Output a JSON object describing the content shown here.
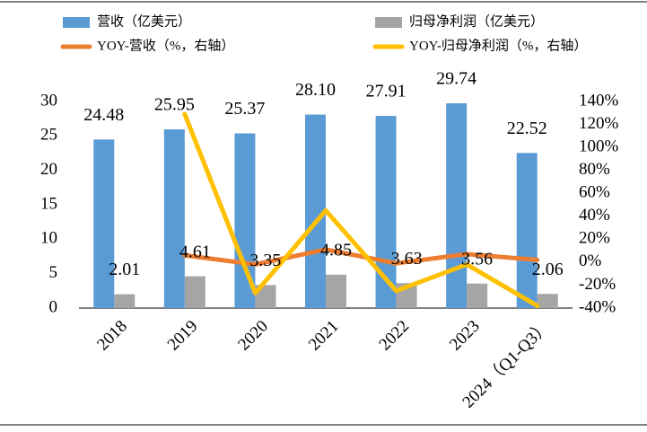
{
  "chart_data": {
    "type": "bar_line",
    "categories": [
      "2018",
      "2019",
      "2020",
      "2021",
      "2022",
      "2023",
      "2024（Q1-Q3）"
    ],
    "series": [
      {
        "name": "营收（亿美元）",
        "type": "bar",
        "color": "#5b9bd5",
        "values": [
          24.48,
          25.95,
          25.37,
          28.1,
          27.91,
          29.74,
          22.52
        ],
        "value_labels": [
          "24.48",
          "25.95",
          "25.37",
          "28.10",
          "27.91",
          "29.74",
          "22.52"
        ]
      },
      {
        "name": "归母净利润（亿美元）",
        "type": "bar",
        "color": "#a5a5a5",
        "values": [
          2.01,
          4.61,
          3.35,
          4.85,
          3.63,
          3.56,
          2.06
        ],
        "value_labels": [
          "2.01",
          "4.61",
          "3.35",
          "4.85",
          "3.63",
          "3.56",
          "2.06"
        ]
      },
      {
        "name": "YOY-营收（%，右轴）",
        "type": "line",
        "axis": "y2",
        "color": "#ed7d31",
        "values": [
          null,
          6,
          -2,
          11,
          -1,
          7,
          2
        ]
      },
      {
        "name": "YOY-归母净利润（%，右轴）",
        "type": "line",
        "axis": "y2",
        "color": "#ffc000",
        "values": [
          null,
          129,
          -27,
          45,
          -25,
          -2,
          -38
        ]
      }
    ],
    "ylim": [
      0,
      30
    ],
    "yticks": [
      0,
      5,
      10,
      15,
      20,
      25,
      30
    ],
    "y2lim": [
      -40,
      140
    ],
    "y2ticks": [
      {
        "value": -40,
        "label": "-40%"
      },
      {
        "value": -20,
        "label": "-20%"
      },
      {
        "value": 0,
        "label": "0%"
      },
      {
        "value": 20,
        "label": "20%"
      },
      {
        "value": 40,
        "label": "40%"
      },
      {
        "value": 60,
        "label": "60%"
      },
      {
        "value": 80,
        "label": "80%"
      },
      {
        "value": 100,
        "label": "100%"
      },
      {
        "value": 120,
        "label": "120%"
      },
      {
        "value": 140,
        "label": "140%"
      }
    ],
    "legend": "top"
  }
}
